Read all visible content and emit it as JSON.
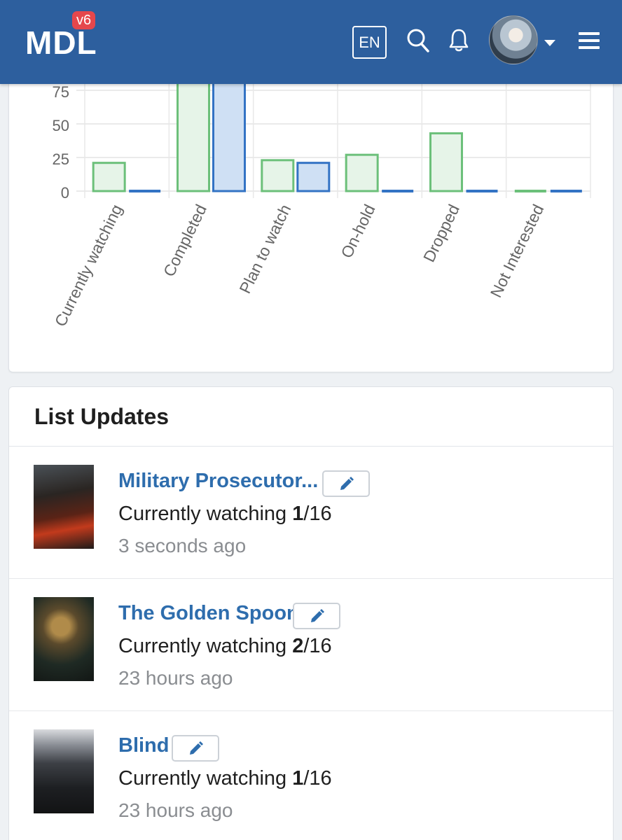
{
  "header": {
    "logo_text": "MDL",
    "logo_badge": "v6",
    "language_label": "EN",
    "brand_color": "#2d5f9e",
    "icons": [
      "search-icon",
      "bell-icon",
      "avatar",
      "chevron-down-icon",
      "hamburger-menu-icon"
    ]
  },
  "chart_data": {
    "type": "bar",
    "categories": [
      "Currently watching",
      "Completed",
      "Plan to watch",
      "On-hold",
      "Dropped",
      "Not Interested"
    ],
    "series": [
      {
        "color": "#6cc07a",
        "fill": "#e6f4e8",
        "values": [
          21,
          85,
          23,
          27,
          43,
          0
        ]
      },
      {
        "color": "#3373c4",
        "fill": "#cfe0f4",
        "values": [
          0,
          85,
          21,
          0,
          1,
          0
        ]
      }
    ],
    "yticks": [
      0,
      25,
      50,
      75
    ],
    "ylim": [
      0,
      90
    ],
    "grid": true
  },
  "list_updates": {
    "title": "List Updates",
    "items": [
      {
        "title": "Military Prosecutor...",
        "status": "Currently watching",
        "progress": "1",
        "total": "/16",
        "time": "3 seconds ago",
        "poster_color": "#3a2420"
      },
      {
        "title": "The Golden Spoon",
        "status": "Currently watching",
        "progress": "2",
        "total": "/16",
        "time": "23 hours ago",
        "poster_color": "#2b2a24"
      },
      {
        "title": "Blind",
        "status": "Currently watching",
        "progress": "1",
        "total": "/16",
        "time": "23 hours ago",
        "poster_color": "#3b3c40"
      }
    ]
  }
}
